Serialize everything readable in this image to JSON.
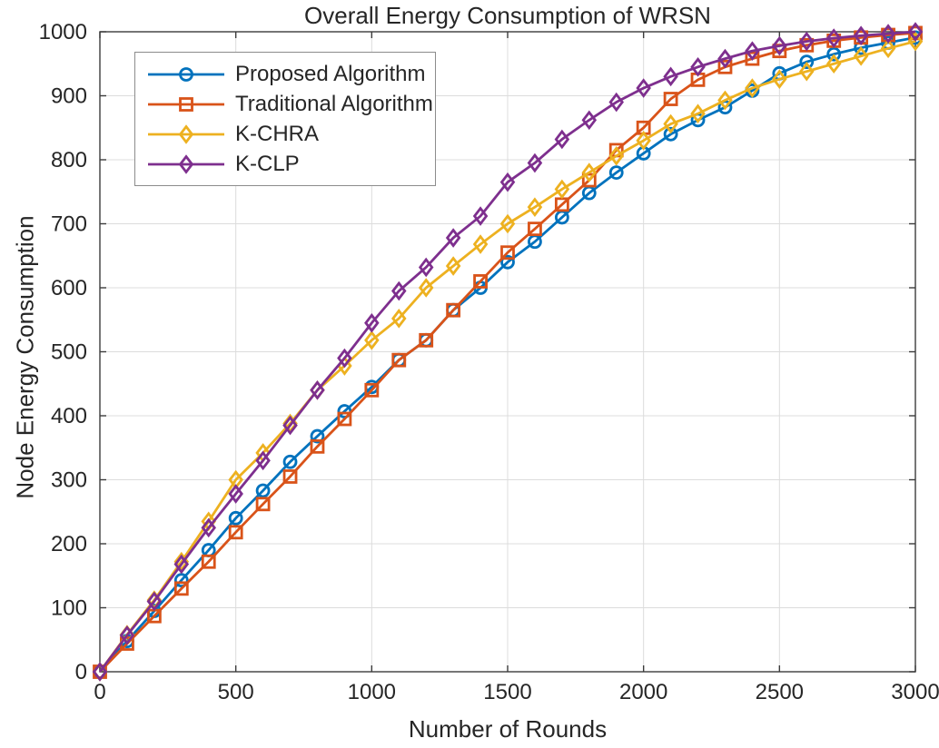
{
  "title": "Overall Energy Consumption of WRSN",
  "chart_data": {
    "type": "line",
    "title": "Overall Energy Consumption of WRSN",
    "xlabel": "Number of Rounds",
    "ylabel": "Node Energy Consumption",
    "xlim": [
      0,
      3000
    ],
    "ylim": [
      0,
      1000
    ],
    "xticks": [
      0,
      500,
      1000,
      1500,
      2000,
      2500,
      3000
    ],
    "yticks": [
      0,
      100,
      200,
      300,
      400,
      500,
      600,
      700,
      800,
      900,
      1000
    ],
    "grid": true,
    "legend_position": "top-left",
    "x": [
      0,
      100,
      200,
      300,
      400,
      500,
      600,
      700,
      800,
      900,
      1000,
      1100,
      1200,
      1300,
      1400,
      1500,
      1600,
      1700,
      1800,
      1900,
      2000,
      2100,
      2200,
      2300,
      2400,
      2500,
      2600,
      2700,
      2800,
      2900,
      3000
    ],
    "series": [
      {
        "name": "Proposed Algorithm",
        "color": "#0072BD",
        "marker": "circle",
        "values": [
          0,
          48,
          95,
          143,
          190,
          240,
          283,
          328,
          368,
          407,
          445,
          487,
          518,
          565,
          600,
          640,
          672,
          710,
          748,
          780,
          810,
          840,
          862,
          882,
          908,
          935,
          953,
          965,
          975,
          983,
          991
        ]
      },
      {
        "name": "Traditional Algorithm",
        "color": "#D95319",
        "marker": "square",
        "values": [
          0,
          44,
          87,
          130,
          172,
          218,
          262,
          305,
          352,
          395,
          440,
          487,
          518,
          565,
          610,
          655,
          692,
          730,
          768,
          815,
          850,
          895,
          925,
          945,
          958,
          970,
          979,
          986,
          991,
          995,
          998
        ]
      },
      {
        "name": "K-CHRA",
        "color": "#EDB120",
        "marker": "diamond",
        "values": [
          0,
          58,
          112,
          172,
          235,
          300,
          342,
          388,
          440,
          478,
          518,
          552,
          600,
          634,
          668,
          700,
          726,
          754,
          780,
          806,
          830,
          856,
          872,
          893,
          912,
          926,
          938,
          950,
          962,
          974,
          985
        ]
      },
      {
        "name": "K-CLP",
        "color": "#7E2F8E",
        "marker": "diamond",
        "values": [
          0,
          57,
          110,
          168,
          225,
          278,
          330,
          385,
          440,
          490,
          545,
          595,
          632,
          678,
          712,
          765,
          795,
          832,
          862,
          890,
          912,
          930,
          945,
          958,
          970,
          978,
          985,
          990,
          994,
          997,
          1000
        ]
      }
    ]
  },
  "colors": {
    "axis": "#3b3b3b",
    "grid": "#dcdcdc",
    "text": "#262626",
    "background": "#ffffff"
  }
}
